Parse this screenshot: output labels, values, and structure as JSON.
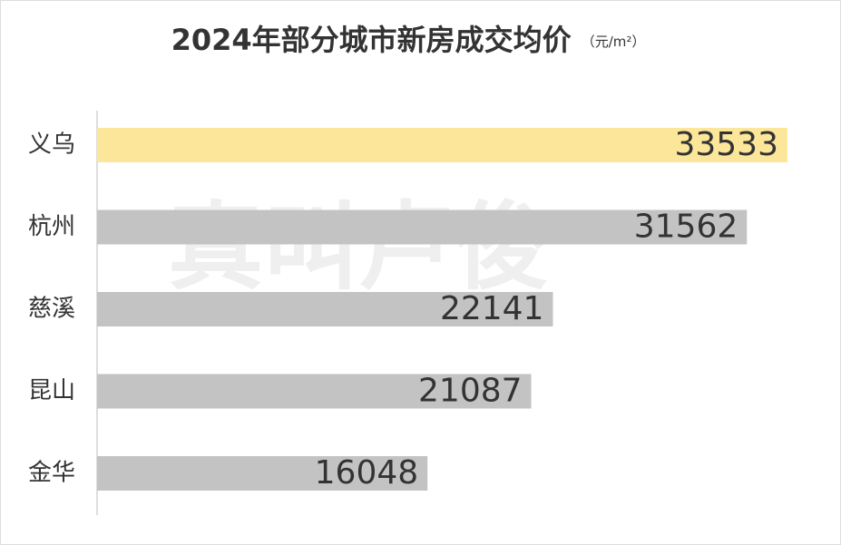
{
  "chart_data": {
    "type": "hbar",
    "title": "2024年部分城市新房成交均价",
    "subtitle": "（元/m²）",
    "watermark": "真叫卢俊",
    "categories": [
      "义乌",
      "杭州",
      "慈溪",
      "昆山",
      "金华"
    ],
    "values": [
      33533,
      31562,
      22141,
      21087,
      16048
    ],
    "colors": [
      "#fce69a",
      "#c3c3c3",
      "#c3c3c3",
      "#c3c3c3",
      "#c3c3c3"
    ]
  }
}
